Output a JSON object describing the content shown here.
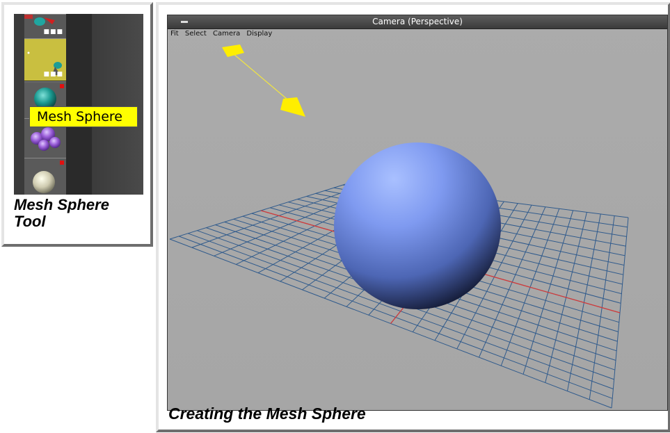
{
  "left_panel": {
    "tooltip": "Mesh Sphere",
    "caption_line1": "Mesh Sphere",
    "caption_line2": "Tool",
    "tile_dots": "■■■"
  },
  "camera_window": {
    "title": "Camera  (Perspective)",
    "menu_glyph": "▬",
    "menu": [
      "Fit",
      "Select",
      "Camera",
      "Display"
    ]
  },
  "caption": "Creating the Mesh Sphere",
  "colors": {
    "viewport": "#a9a9a9",
    "grid": "#2f5a8c",
    "axis": "#d23a3a",
    "tooltip": "#ffff00",
    "light": "#ffee00"
  }
}
